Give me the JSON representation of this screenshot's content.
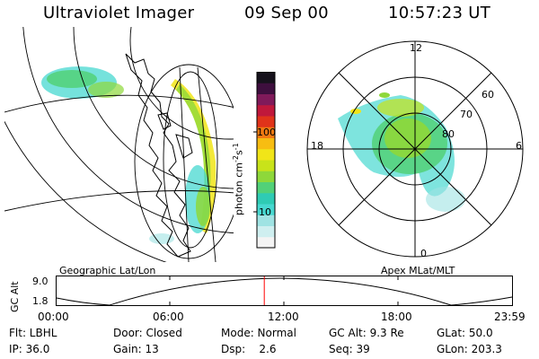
{
  "header": {
    "instrument": "Ultraviolet Imager",
    "date": "09 Sep 00",
    "time": "10:57:23 UT"
  },
  "left_panel": {
    "caption": "Geographic Lat/Lon"
  },
  "right_panel": {
    "caption": "Apex MLat/MLT",
    "mlt_labels": [
      "12",
      "18",
      "6",
      "0"
    ],
    "lat_labels": [
      "60",
      "70",
      "80"
    ]
  },
  "colorbar": {
    "label": "photon cm",
    "exp1": "-2",
    "s": "s",
    "exp2": "-1",
    "tick_labels": [
      "100",
      "10"
    ],
    "colors": [
      "#f4f4f4",
      "#cfeff0",
      "#9fe3e3",
      "#47d8d0",
      "#2fcbb4",
      "#52d178",
      "#8ed83a",
      "#c8e31a",
      "#f1e518",
      "#f7bd12",
      "#f37a12",
      "#e0331a",
      "#c0183b",
      "#801a5a",
      "#3e0f3e",
      "#16121c"
    ]
  },
  "orbit": {
    "ylabel": "GC Alt",
    "ytick_top": "9.0",
    "ytick_bottom": "1.8",
    "xticks": [
      "00:00",
      "06:00",
      "12:00",
      "18:00",
      "23:59"
    ],
    "current_time_fraction": 0.456,
    "marker_color": "#ff0000"
  },
  "info": {
    "row1": {
      "filter": "Flt: LBHL",
      "door": "Door: Closed",
      "mode": "Mode: Normal",
      "alt": "GC Alt: 9.3 Re",
      "glat": "GLat:  50.0"
    },
    "row2": {
      "ip": "IP: 36.0",
      "gain": "Gain: 13",
      "dsp": "Dsp:    2.6",
      "seq": "Seq: 39",
      "glon": "GLon: 203.3"
    }
  }
}
